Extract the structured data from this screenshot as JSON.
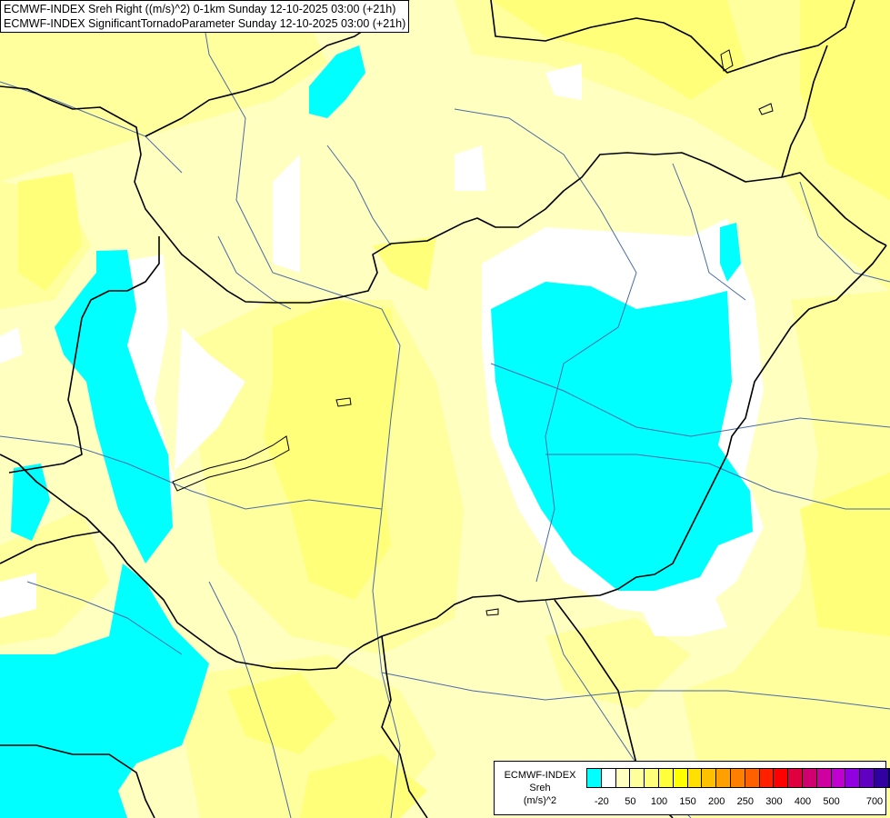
{
  "titles": {
    "line1": "ECMWF-INDEX Sreh Right ((m/s)^2) 0-1km Sunday 12-10-2025 03:00 (+21h)",
    "line2": "ECMWF-INDEX SignificantTornadoParameter Sunday 12-10-2025 03:00 (+21h)"
  },
  "legend": {
    "source": "ECMWF-INDEX",
    "parameter": "Sreh",
    "unit": "(m/s)^2",
    "colors": [
      "#00ffff",
      "#ffffff",
      "#ffffc0",
      "#ffff9e",
      "#ffff7a",
      "#ffff3c",
      "#ffff00",
      "#ffe000",
      "#ffc000",
      "#ffa000",
      "#ff8000",
      "#ff6000",
      "#ff2000",
      "#ff0000",
      "#e00040",
      "#d00070",
      "#d000a0",
      "#c000d0",
      "#9000e0",
      "#6000c0",
      "#3000a0",
      "#000080"
    ],
    "ticks": [
      "-20",
      "50",
      "100",
      "150",
      "200",
      "250",
      "300",
      "400",
      "500",
      "700"
    ]
  },
  "map_colors": {
    "background": "#ffffc0",
    "light_yellow": "#ffff9e",
    "mid_yellow": "#ffff7a",
    "strong_yellow": "#ffff3c",
    "negative": "#00ffff",
    "zero": "#ffffff",
    "border_line": "#000000",
    "river_line": "#4a6aa8"
  }
}
